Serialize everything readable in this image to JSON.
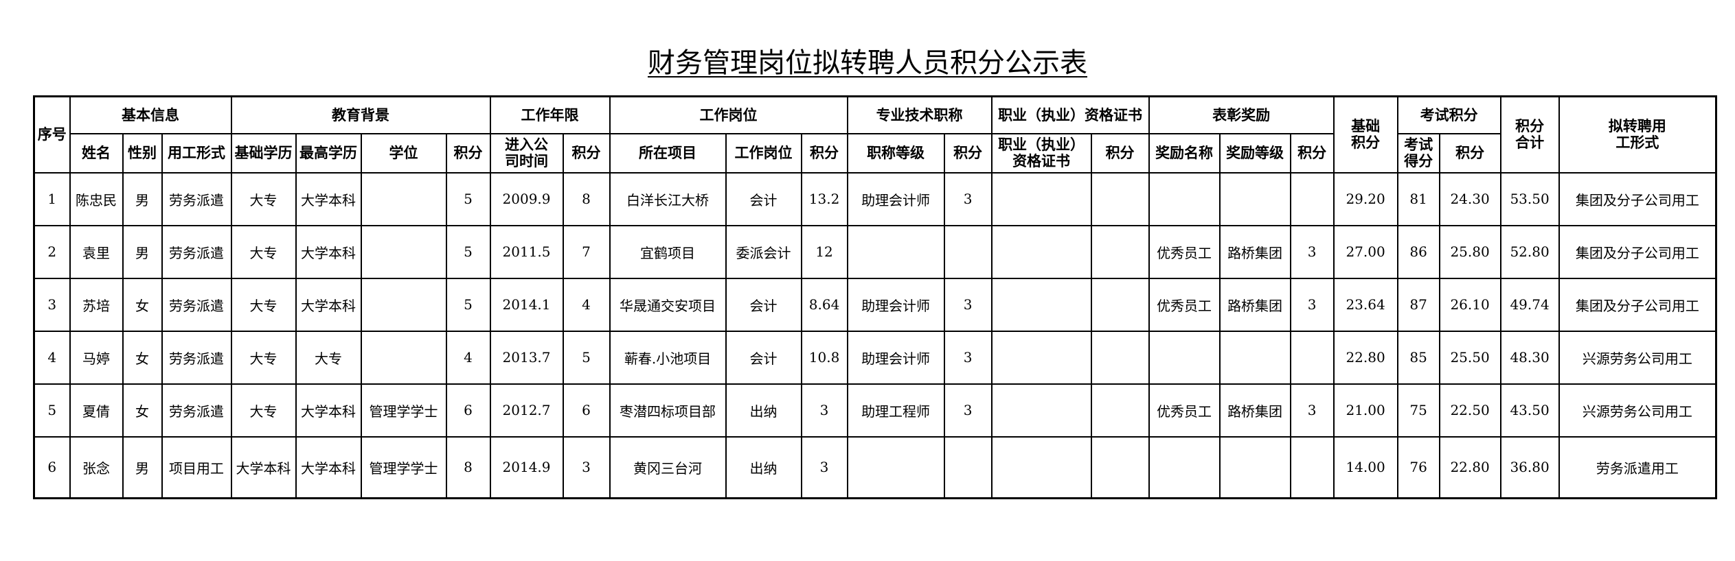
{
  "title": "财务管理岗位拟转聘人员积分公示表",
  "header": {
    "seq": "序号",
    "groups": {
      "basic": "基本信息",
      "education": "教育背景",
      "work_years": "工作年限",
      "position": "工作岗位",
      "tech_title": "专业技术职称",
      "certificate": "职业（执业）资格证书",
      "awards": "表彰奖励",
      "base_score": "基础积分",
      "exam": "考试积分",
      "total": "积分合计",
      "proposed": "拟转聘用工形式"
    },
    "sub": {
      "name": "姓名",
      "gender": "性别",
      "employment": "用工形式",
      "base_edu": "基础学历",
      "top_edu": "最高学历",
      "degree": "学位",
      "edu_score": "积分",
      "join_date": "进入公司时间",
      "years_score": "积分",
      "project": "所在项目",
      "post": "工作岗位",
      "post_score": "积分",
      "title_level": "职称等级",
      "title_score": "积分",
      "cert": "职业（执业）资格证书",
      "cert_score": "积分",
      "award_name": "奖励名称",
      "award_level": "奖励等级",
      "award_score": "积分",
      "exam_score": "考试得分",
      "exam_points": "积分"
    }
  },
  "rows": [
    [
      "1",
      "陈忠民",
      "男",
      "劳务派遣",
      "大专",
      "大学本科",
      "",
      "5",
      "2009.9",
      "8",
      "白洋长江大桥",
      "会计",
      "13.2",
      "助理会计师",
      "3",
      "",
      "",
      "",
      "",
      "",
      "29.20",
      "81",
      "24.30",
      "53.50",
      "集团及分子公司用工"
    ],
    [
      "2",
      "袁里",
      "男",
      "劳务派遣",
      "大专",
      "大学本科",
      "",
      "5",
      "2011.5",
      "7",
      "宜鹤项目",
      "委派会计",
      "12",
      "",
      "",
      "",
      "",
      "优秀员工",
      "路桥集团",
      "3",
      "27.00",
      "86",
      "25.80",
      "52.80",
      "集团及分子公司用工"
    ],
    [
      "3",
      "苏培",
      "女",
      "劳务派遣",
      "大专",
      "大学本科",
      "",
      "5",
      "2014.1",
      "4",
      "华晟通交安项目",
      "会计",
      "8.64",
      "助理会计师",
      "3",
      "",
      "",
      "优秀员工",
      "路桥集团",
      "3",
      "23.64",
      "87",
      "26.10",
      "49.74",
      "集团及分子公司用工"
    ],
    [
      "4",
      "马婷",
      "女",
      "劳务派遣",
      "大专",
      "大专",
      "",
      "4",
      "2013.7",
      "5",
      "蕲春.小池项目",
      "会计",
      "10.8",
      "助理会计师",
      "3",
      "",
      "",
      "",
      "",
      "",
      "22.80",
      "85",
      "25.50",
      "48.30",
      "兴源劳务公司用工"
    ],
    [
      "5",
      "夏倩",
      "女",
      "劳务派遣",
      "大专",
      "大学本科",
      "管理学学士",
      "6",
      "2012.7",
      "6",
      "枣潜四标项目部",
      "出纳",
      "3",
      "助理工程师",
      "3",
      "",
      "",
      "优秀员工",
      "路桥集团",
      "3",
      "21.00",
      "75",
      "22.50",
      "43.50",
      "兴源劳务公司用工"
    ],
    [
      "6",
      "张念",
      "男",
      "项目用工",
      "大学本科",
      "大学本科",
      "管理学学士",
      "8",
      "2014.9",
      "3",
      "黄冈三台河",
      "出纳",
      "3",
      "",
      "",
      "",
      "",
      "",
      "",
      "",
      "14.00",
      "76",
      "22.80",
      "36.80",
      "劳务派遣用工"
    ]
  ]
}
